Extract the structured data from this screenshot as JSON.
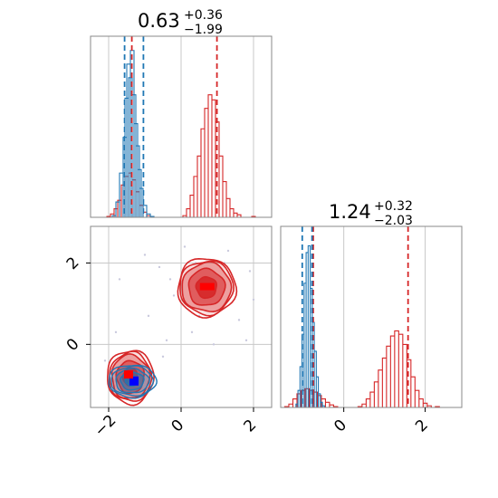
{
  "chart_data": {
    "type": "corner",
    "colors": {
      "red": "#d62728",
      "blue": "#1f77b4",
      "grid": "#c8c8c8",
      "frame": "#888888"
    },
    "parameters": [
      {
        "title_value": "0.63",
        "title_plus": "+0.36",
        "title_minus": "−1.99",
        "range": [
          -2.5,
          2.5
        ],
        "ticks": [
          -2,
          0,
          2
        ],
        "tick_labels": [
          "−2",
          "0",
          "2"
        ],
        "red_quantile_lines": [
          -1.36,
          0.99
        ],
        "blue_quantile_lines": [
          -1.56,
          -1.04
        ],
        "red_hist_x": [
          -2.0,
          -1.9,
          -1.8,
          -1.7,
          -1.6,
          -1.5,
          -1.4,
          -1.3,
          -1.2,
          -1.1,
          -1.0,
          -0.9,
          -0.8,
          0.1,
          0.2,
          0.3,
          0.4,
          0.5,
          0.6,
          0.7,
          0.8,
          0.9,
          1.0,
          1.1,
          1.2,
          1.3,
          1.4,
          1.5,
          1.6,
          2.0
        ],
        "red_hist_y": [
          0.005,
          0.02,
          0.05,
          0.1,
          0.19,
          0.24,
          0.26,
          0.22,
          0.15,
          0.07,
          0.03,
          0.01,
          0.005,
          0.01,
          0.05,
          0.13,
          0.24,
          0.36,
          0.52,
          0.64,
          0.72,
          0.69,
          0.56,
          0.36,
          0.21,
          0.11,
          0.05,
          0.025,
          0.015,
          0.005
        ],
        "blue_hist_x": [
          -1.85,
          -1.75,
          -1.65,
          -1.55,
          -1.5,
          -1.45,
          -1.4,
          -1.35,
          -1.3,
          -1.25,
          -1.2,
          -1.15,
          -1.1,
          -1.0,
          -0.9,
          -0.8
        ],
        "blue_hist_y": [
          0.01,
          0.09,
          0.26,
          0.47,
          0.7,
          0.9,
          0.82,
          0.98,
          0.72,
          0.55,
          0.42,
          0.28,
          0.17,
          0.07,
          0.02,
          0.005
        ],
        "hist_ymax": 1.0
      },
      {
        "title_value": "1.24",
        "title_plus": "+0.32",
        "title_minus": "−2.03",
        "range": [
          -1.55,
          2.9
        ],
        "ticks": [
          0,
          2
        ],
        "tick_labels": [
          "0",
          "2"
        ],
        "red_quantile_lines": [
          -0.75,
          1.58
        ],
        "blue_quantile_lines": [
          -1.02,
          -0.78
        ],
        "red_hist_x": [
          -1.4,
          -1.3,
          -1.2,
          -1.1,
          -1.0,
          -0.9,
          -0.8,
          -0.7,
          -0.6,
          -0.5,
          -0.4,
          -0.3,
          -0.2,
          0.4,
          0.5,
          0.6,
          0.7,
          0.8,
          0.9,
          1.0,
          1.1,
          1.2,
          1.3,
          1.4,
          1.5,
          1.6,
          1.7,
          1.8,
          1.9,
          2.0,
          2.1,
          2.3
        ],
        "red_hist_y": [
          0.005,
          0.02,
          0.05,
          0.08,
          0.1,
          0.11,
          0.1,
          0.09,
          0.07,
          0.05,
          0.03,
          0.015,
          0.005,
          0.005,
          0.02,
          0.05,
          0.09,
          0.15,
          0.22,
          0.29,
          0.36,
          0.42,
          0.45,
          0.43,
          0.37,
          0.28,
          0.18,
          0.1,
          0.05,
          0.025,
          0.01,
          0.005
        ],
        "blue_hist_x": [
          -1.15,
          -1.1,
          -1.05,
          -1.0,
          -0.95,
          -0.9,
          -0.85,
          -0.8,
          -0.75,
          -0.7,
          -0.65,
          -0.6,
          -0.55,
          -0.5
        ],
        "blue_hist_y": [
          0.02,
          0.1,
          0.24,
          0.43,
          0.73,
          0.91,
          0.95,
          0.7,
          0.5,
          0.33,
          0.18,
          0.08,
          0.03,
          0.01
        ],
        "hist_ymax": 1.0
      }
    ],
    "joint": {
      "red_modes": [
        {
          "center": [
            0.7,
            1.4
          ],
          "level_radii": [
            [
              0.28,
              0.26
            ],
            [
              0.5,
              0.45
            ],
            [
              0.68,
              0.6
            ],
            [
              0.74,
              0.66
            ],
            [
              0.8,
              0.72
            ]
          ]
        },
        {
          "center": [
            -1.4,
            -0.8
          ],
          "level_radii": [
            [
              0.2,
              0.22
            ],
            [
              0.38,
              0.4
            ],
            [
              0.52,
              0.54
            ],
            [
              0.58,
              0.6
            ],
            [
              0.64,
              0.66
            ]
          ]
        }
      ],
      "blue_mode": {
        "center": [
          -1.35,
          -0.9
        ],
        "level_radii": [
          [
            0.18,
            0.12
          ],
          [
            0.32,
            0.22
          ],
          [
            0.46,
            0.3
          ],
          [
            0.58,
            0.36
          ],
          [
            0.66,
            0.4
          ]
        ]
      },
      "red_peak": [
        0.72,
        1.42
      ],
      "blue_peak": [
        -1.3,
        -0.9
      ],
      "scatter": [
        [
          -1.0,
          2.2
        ],
        [
          -0.6,
          1.9
        ],
        [
          -0.2,
          1.2
        ],
        [
          0.3,
          0.3
        ],
        [
          1.6,
          0.6
        ],
        [
          1.9,
          1.8
        ],
        [
          1.3,
          2.3
        ],
        [
          0.4,
          2.0
        ],
        [
          -1.7,
          1.6
        ],
        [
          -0.4,
          0.1
        ],
        [
          0.9,
          0.0
        ],
        [
          1.8,
          0.1
        ],
        [
          -2.1,
          -0.4
        ],
        [
          -0.5,
          -0.3
        ],
        [
          -1.8,
          0.3
        ],
        [
          0.1,
          2.4
        ],
        [
          -0.9,
          0.7
        ],
        [
          1.2,
          2.0
        ],
        [
          -0.3,
          1.6
        ],
        [
          0.5,
          0.7
        ],
        [
          2.0,
          1.1
        ],
        [
          -1.1,
          -0.2
        ]
      ]
    }
  }
}
